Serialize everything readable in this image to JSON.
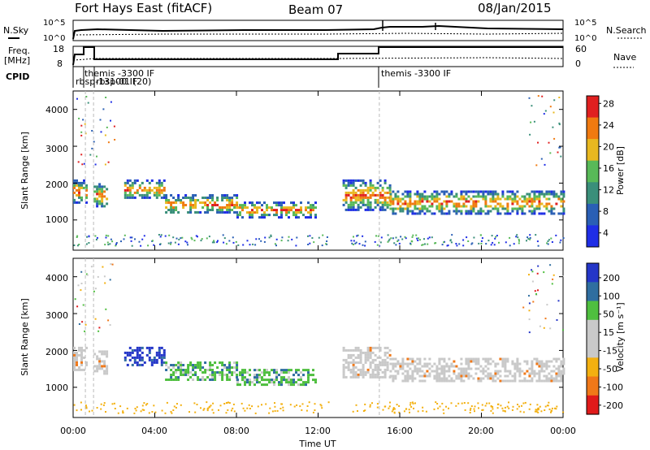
{
  "header": {
    "station": "Fort Hays East (fitACF)",
    "beam": "Beam 07",
    "date": "08/Jan/2015"
  },
  "strip": {
    "nsky_label": "N.Sky",
    "nsearch_label": "N.Search",
    "nsky_ticks": [
      "10^5",
      "10^0"
    ],
    "nsearch_ticks": [
      "10^5",
      "10^0"
    ],
    "freq_label_1": "Freq.",
    "freq_label_2": "[MHz]",
    "freq_ticks": [
      "18",
      "8"
    ],
    "nave_label": "Nave",
    "nave_ticks": [
      "60",
      "0"
    ],
    "cpid_label": "CPID",
    "cpid_entries": [
      "themis -3300 IF",
      "rbsp-13100 IF",
      "rbsp-01 (20)",
      "themis -3300 IF"
    ]
  },
  "chart_data": [
    {
      "type": "heatmap",
      "name": "power",
      "ylabel": "Slant Range [km]",
      "xlabel": "",
      "xlim": [
        0,
        24
      ],
      "ylim": [
        180,
        4500
      ],
      "yticks": [
        "1000",
        "2000",
        "3000",
        "4000"
      ],
      "colorbar": {
        "label": "Power [dB]",
        "ticks": [
          "4",
          "8",
          "12",
          "16",
          "20",
          "24",
          "28"
        ],
        "colors": [
          "#1f2ee6",
          "#2a5fb5",
          "#3a8f7a",
          "#58b958",
          "#e8b820",
          "#f07a10",
          "#e02020"
        ]
      },
      "bands": [
        {
          "t0": 0.0,
          "t1": 0.6,
          "r0": 1500,
          "r1": 2100
        },
        {
          "t0": 1.0,
          "t1": 1.6,
          "r0": 1400,
          "r1": 2000
        },
        {
          "t0": 2.5,
          "t1": 4.5,
          "r0": 1600,
          "r1": 2100
        },
        {
          "t0": 4.5,
          "t1": 8.0,
          "r0": 1200,
          "r1": 1700
        },
        {
          "t0": 8.0,
          "t1": 11.9,
          "r0": 1100,
          "r1": 1500
        },
        {
          "t0": 13.2,
          "t1": 15.5,
          "r0": 1300,
          "r1": 2100
        },
        {
          "t0": 15.5,
          "t1": 24.0,
          "r0": 1200,
          "r1": 1800
        }
      ]
    },
    {
      "type": "heatmap",
      "name": "velocity",
      "ylabel": "Slant Range [km]",
      "xlabel": "Time UT",
      "xlim": [
        0,
        24
      ],
      "ylim": [
        180,
        4500
      ],
      "yticks": [
        "1000",
        "2000",
        "3000",
        "4000"
      ],
      "xticks": [
        "00:00",
        "04:00",
        "08:00",
        "12:00",
        "16:00",
        "20:00",
        "00:00"
      ],
      "colorbar": {
        "label": "Velocity [m s⁻¹]",
        "ticks": [
          "200",
          "100",
          "50",
          "15",
          "-15",
          "-50",
          "-100",
          "-200"
        ],
        "colors": [
          "#2436c8",
          "#2f6ea0",
          "#4fbf3f",
          "#c9c9c9",
          "#c9c9c9",
          "#f3b010",
          "#f07818",
          "#e01a1a"
        ]
      }
    }
  ]
}
